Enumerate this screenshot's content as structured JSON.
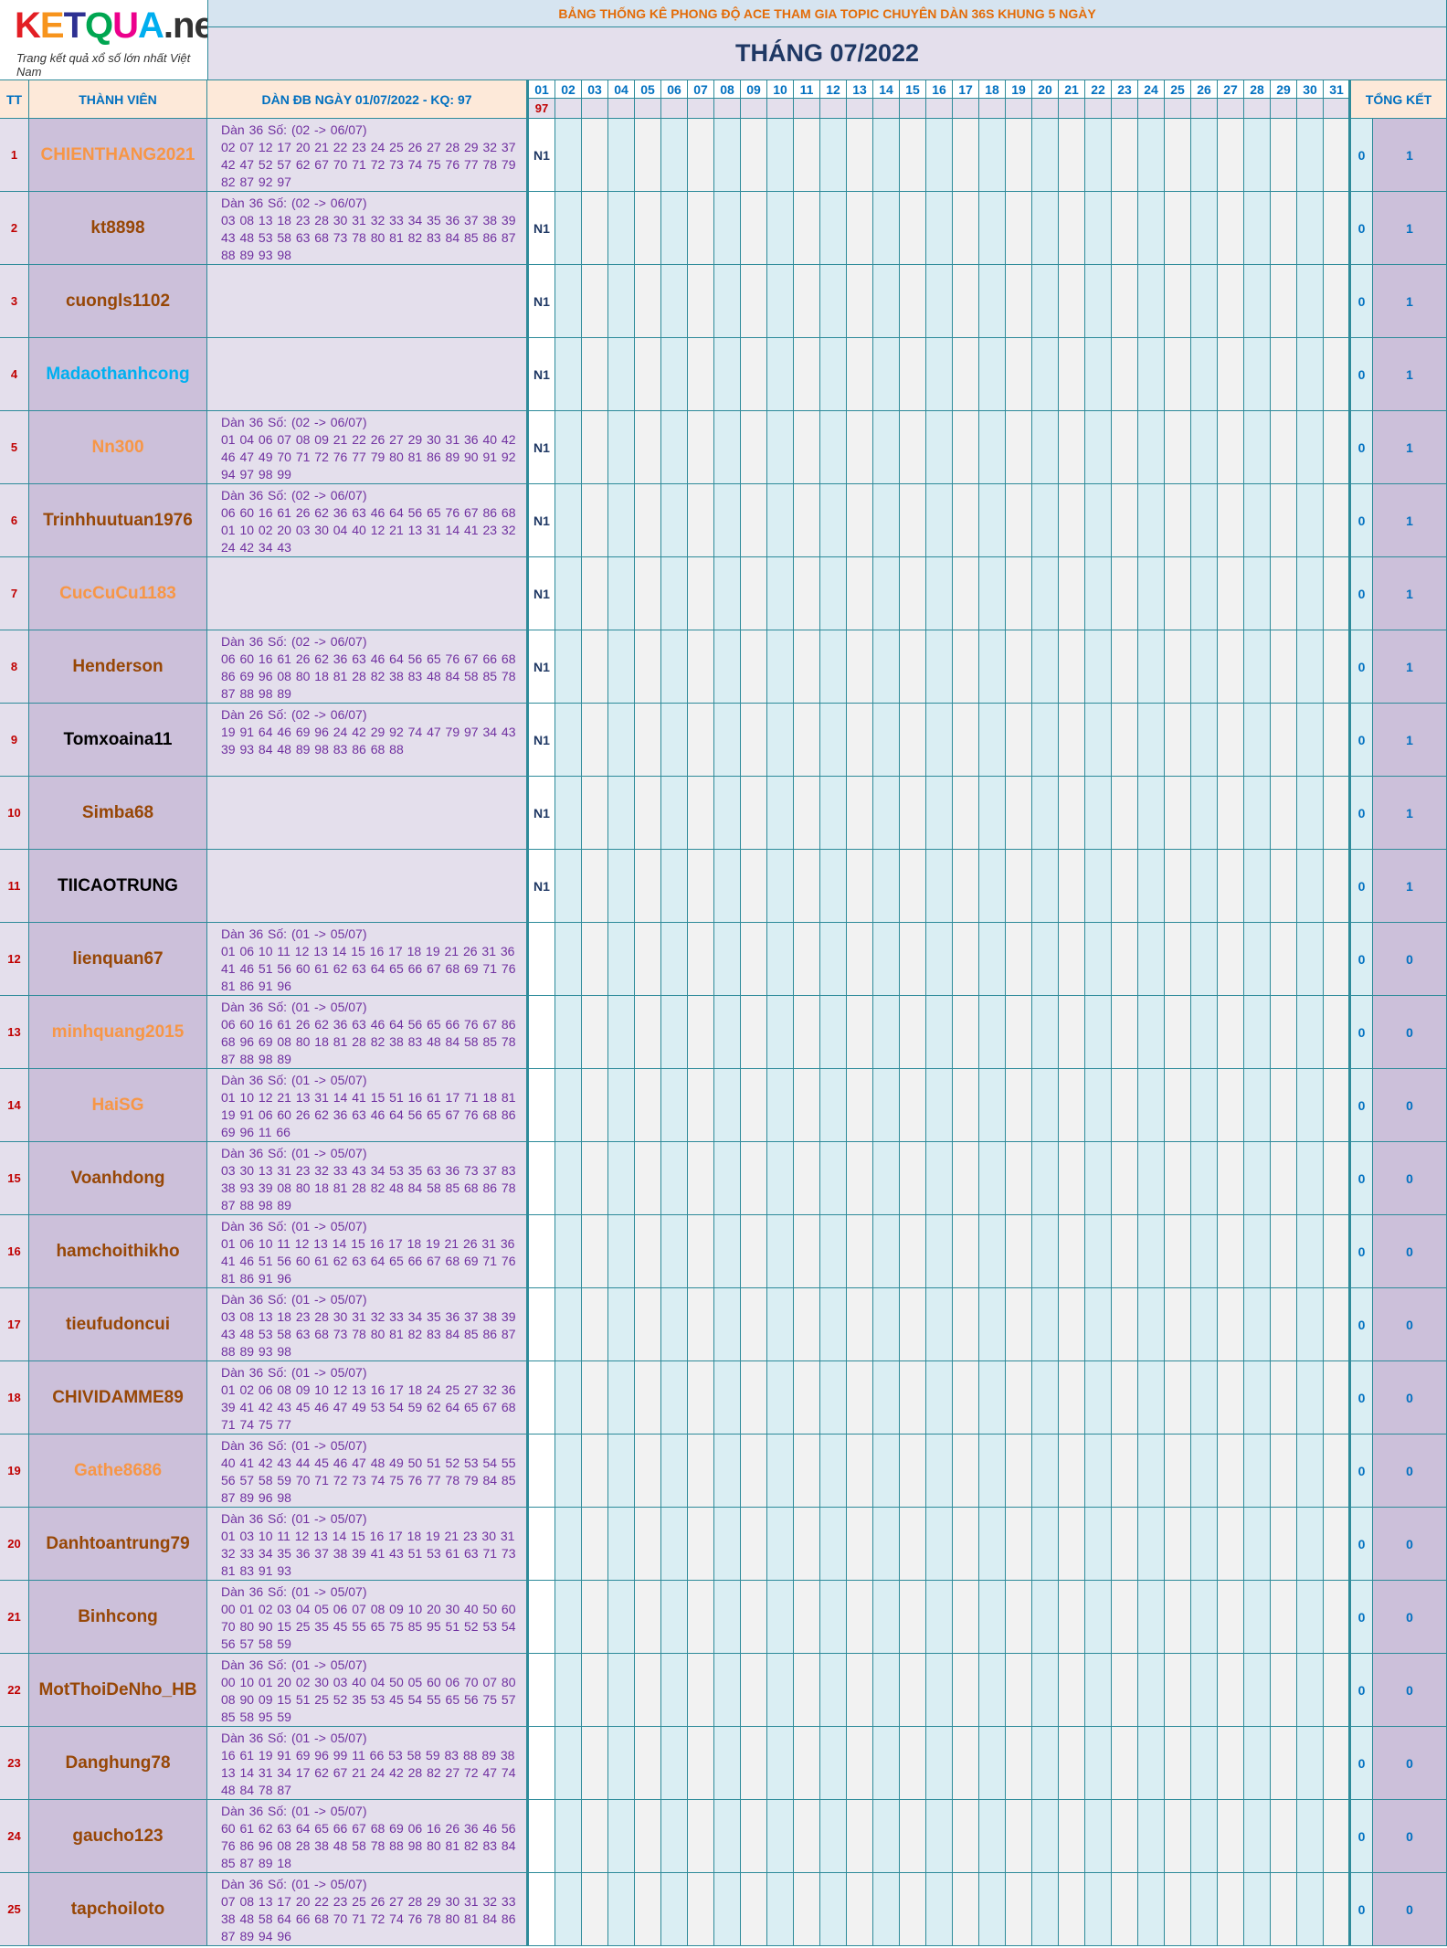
{
  "logo": {
    "text": "KETQUA.net",
    "tagline": "Trang kết quả xổ số lớn nhất Việt Nam"
  },
  "header": {
    "banner": "BẢNG THỐNG KÊ PHONG ĐỘ ACE THAM GIA TOPIC CHUYÊN DÀN 36S KHUNG 5 NGÀY",
    "month": "THÁNG 07/2022",
    "col_tt": "TT",
    "col_member": "THÀNH VIÊN",
    "col_note": "DÀN ĐB NGÀY 01/07/2022 - KQ: 97",
    "col_total": "TỔNG KẾT",
    "days": [
      "01",
      "02",
      "03",
      "04",
      "05",
      "06",
      "07",
      "08",
      "09",
      "10",
      "11",
      "12",
      "13",
      "14",
      "15",
      "16",
      "17",
      "18",
      "19",
      "20",
      "21",
      "22",
      "23",
      "24",
      "25",
      "26",
      "27",
      "28",
      "29",
      "30",
      "31"
    ],
    "day01_result": "97"
  },
  "colors": {
    "orange": "#f79646",
    "brown": "#974706",
    "blue": "#00b0f0",
    "black": "#000000",
    "border": "#2e8b9a"
  },
  "rows": [
    {
      "tt": "1",
      "name": "CHIENTHANG2021",
      "color": "#f79646",
      "note": "Dàn 36 Số: (02 -> 06/07)\n02 07 12 17 20 21 22 23 24 25 26 27 28 29 32 37\n42 47 52 57 62 67 70 71 72 73 74 75 76 77 78 79\n82 87 92 97",
      "d1": "N1",
      "s1": "0",
      "s2": "1"
    },
    {
      "tt": "2",
      "name": "kt8898",
      "color": "#974706",
      "note": "Dàn 36 Số: (02 -> 06/07)\n03 08 13 18 23 28 30 31 32 33 34 35 36 37 38 39\n43 48 53 58 63 68 73 78 80 81 82 83 84 85 86 87\n88 89 93 98",
      "d1": "N1",
      "s1": "0",
      "s2": "1"
    },
    {
      "tt": "3",
      "name": "cuongls1102",
      "color": "#974706",
      "note": "",
      "d1": "N1",
      "s1": "0",
      "s2": "1"
    },
    {
      "tt": "4",
      "name": "Madaothanhcong",
      "color": "#00b0f0",
      "note": "",
      "d1": "N1",
      "s1": "0",
      "s2": "1"
    },
    {
      "tt": "5",
      "name": "Nn300",
      "color": "#f79646",
      "note": "Dàn 36 Số: (02 -> 06/07)\n01 04 06 07 08 09 21 22 26 27 29 30 31 36 40 42\n46 47 49 70 71 72 76 77 79 80 81 86 89 90 91 92\n94 97 98 99",
      "d1": "N1",
      "s1": "0",
      "s2": "1"
    },
    {
      "tt": "6",
      "name": "Trinhhuutuan1976",
      "color": "#974706",
      "note": "Dàn 36 Số: (02 -> 06/07)\n06 60 16 61 26 62 36 63 46 64 56 65 76 67 86 68\n01 10 02 20 03 30 04 40 12 21 13 31 14 41 23 32\n24 42 34 43",
      "d1": "N1",
      "s1": "0",
      "s2": "1"
    },
    {
      "tt": "7",
      "name": "CucCuCu1183",
      "color": "#f79646",
      "note": "",
      "d1": "N1",
      "s1": "0",
      "s2": "1"
    },
    {
      "tt": "8",
      "name": "Henderson",
      "color": "#974706",
      "note": "Dàn 36 Số: (02 -> 06/07)\n06 60 16 61 26 62 36 63 46 64 56 65 76 67 66 68\n86 69 96 08 80 18 81 28 82 38 83 48 84 58 85 78\n87 88 98 89",
      "d1": "N1",
      "s1": "0",
      "s2": "1"
    },
    {
      "tt": "9",
      "name": "Tomxoaina11",
      "color": "#000000",
      "note": "Dàn 26 Số: (02 -> 06/07)\n19 91 64 46 69 96 24 42 29 92 74 47 79 97 34 43\n39 93 84 48 89 98 83 86 68 88",
      "d1": "N1",
      "s1": "0",
      "s2": "1"
    },
    {
      "tt": "10",
      "name": "Simba68",
      "color": "#974706",
      "note": "",
      "d1": "N1",
      "s1": "0",
      "s2": "1"
    },
    {
      "tt": "11",
      "name": "TIICAOTRUNG",
      "color": "#000000",
      "note": "",
      "d1": "N1",
      "s1": "0",
      "s2": "1"
    },
    {
      "tt": "12",
      "name": "lienquan67",
      "color": "#974706",
      "note": "Dàn 36 Số: (01 -> 05/07)\n01 06 10 11 12 13 14 15 16 17 18 19 21 26 31 36\n41 46 51 56 60 61 62 63 64 65 66 67 68 69 71 76\n81 86 91 96",
      "d1": "",
      "s1": "0",
      "s2": "0"
    },
    {
      "tt": "13",
      "name": "minhquang2015",
      "color": "#f79646",
      "note": "Dàn 36 Số: (01 -> 05/07)\n06 60 16 61 26 62 36 63 46 64 56 65 66 76 67 86\n68 96 69 08 80 18 81 28 82 38 83 48 84 58 85 78\n87 88 98 89",
      "d1": "",
      "s1": "0",
      "s2": "0"
    },
    {
      "tt": "14",
      "name": "HaiSG",
      "color": "#f79646",
      "note": "Dàn 36 Số: (01 -> 05/07)\n01 10 12 21 13 31 14 41 15 51 16 61 17 71 18 81\n19 91 06 60 26 62 36 63 46 64 56 65 67 76 68 86\n69 96 11 66",
      "d1": "",
      "s1": "0",
      "s2": "0"
    },
    {
      "tt": "15",
      "name": "Voanhdong",
      "color": "#974706",
      "note": "Dàn 36 Số: (01 -> 05/07)\n03 30 13 31 23 32 33 43 34 53 35 63 36 73 37 83\n38 93 39 08 80 18 81 28 82 48 84 58 85 68 86 78\n87 88 98 89",
      "d1": "",
      "s1": "0",
      "s2": "0"
    },
    {
      "tt": "16",
      "name": "hamchoithikho",
      "color": "#974706",
      "note": "Dàn 36 Số: (01 -> 05/07)\n01 06 10 11 12 13 14 15 16 17 18 19 21 26 31 36\n41 46 51 56 60 61 62 63 64 65 66 67 68 69 71 76\n81 86 91 96",
      "d1": "",
      "s1": "0",
      "s2": "0"
    },
    {
      "tt": "17",
      "name": "tieufudoncui",
      "color": "#974706",
      "note": "Dàn 36 Số: (01 -> 05/07)\n03 08 13 18 23 28 30 31 32 33 34 35 36 37 38 39\n43 48 53 58 63 68 73 78 80 81 82 83 84 85 86 87\n88 89 93 98",
      "d1": "",
      "s1": "0",
      "s2": "0"
    },
    {
      "tt": "18",
      "name": "CHIVIDAMME89",
      "color": "#974706",
      "note": "Dàn 36 Số: (01 -> 05/07)\n01 02 06 08 09 10 12 13 16 17 18 24 25 27 32 36\n39 41 42 43 45 46 47 49 53 54 59 62 64 65 67 68\n71 74 75 77",
      "d1": "",
      "s1": "0",
      "s2": "0"
    },
    {
      "tt": "19",
      "name": "Gathe8686",
      "color": "#f79646",
      "note": "Dàn 36 Số: (01 -> 05/07)\n40 41 42 43 44 45 46 47 48 49 50 51 52 53 54 55\n56 57 58 59 70 71 72 73 74 75 76 77 78 79 84 85\n87 89 96 98",
      "d1": "",
      "s1": "0",
      "s2": "0"
    },
    {
      "tt": "20",
      "name": "Danhtoantrung79",
      "color": "#974706",
      "note": "Dàn 36 Số: (01 -> 05/07)\n01 03 10 11 12 13 14 15 16 17 18 19 21 23 30 31\n32 33 34 35 36 37 38 39 41 43 51 53 61 63 71 73\n81 83 91 93",
      "d1": "",
      "s1": "0",
      "s2": "0"
    },
    {
      "tt": "21",
      "name": "Binhcong",
      "color": "#974706",
      "note": "Dàn 36 Số: (01 -> 05/07)\n00 01 02 03 04 05 06 07 08 09 10 20 30 40 50 60\n70 80 90 15 25 35 45 55 65 75 85 95 51 52 53 54\n56 57 58 59",
      "d1": "",
      "s1": "0",
      "s2": "0"
    },
    {
      "tt": "22",
      "name": "MotThoiDeNho_HB",
      "color": "#974706",
      "note": "Dàn 36 Số: (01 -> 05/07)\n00 10 01 20 02 30 03 40 04 50 05 60 06 70 07 80\n08 90 09 15 51 25 52 35 53 45 54 55 65 56 75 57\n85 58 95 59",
      "d1": "",
      "s1": "0",
      "s2": "0"
    },
    {
      "tt": "23",
      "name": "Danghung78",
      "color": "#974706",
      "note": "Dàn 36 Số: (01 -> 05/07)\n16 61 19 91 69 96 99 11 66 53 58 59 83 88 89 38\n13 14 31 34 17 62 67 21 24 42 28 82 27 72 47 74\n48 84 78 87",
      "d1": "",
      "s1": "0",
      "s2": "0"
    },
    {
      "tt": "24",
      "name": "gaucho123",
      "color": "#974706",
      "note": "Dàn 36 Số: (01 -> 05/07)\n60 61 62 63 64 65 66 67 68 69 06 16 26 36 46 56\n76 86 96 08 28 38 48 58 78 88 98 80 81 82 83 84\n85 87 89 18",
      "d1": "",
      "s1": "0",
      "s2": "0"
    },
    {
      "tt": "25",
      "name": "tapchoiloto",
      "color": "#974706",
      "note": "Dàn 36 Số: (01 -> 05/07)\n07 08 13 17 20 22 23 25 26 27 28 29 30 31 32 33\n38 48 58 64 66 68 70 71 72 74 76 78 80 81 84 86\n87 89 94 96",
      "d1": "",
      "s1": "0",
      "s2": "0"
    }
  ]
}
